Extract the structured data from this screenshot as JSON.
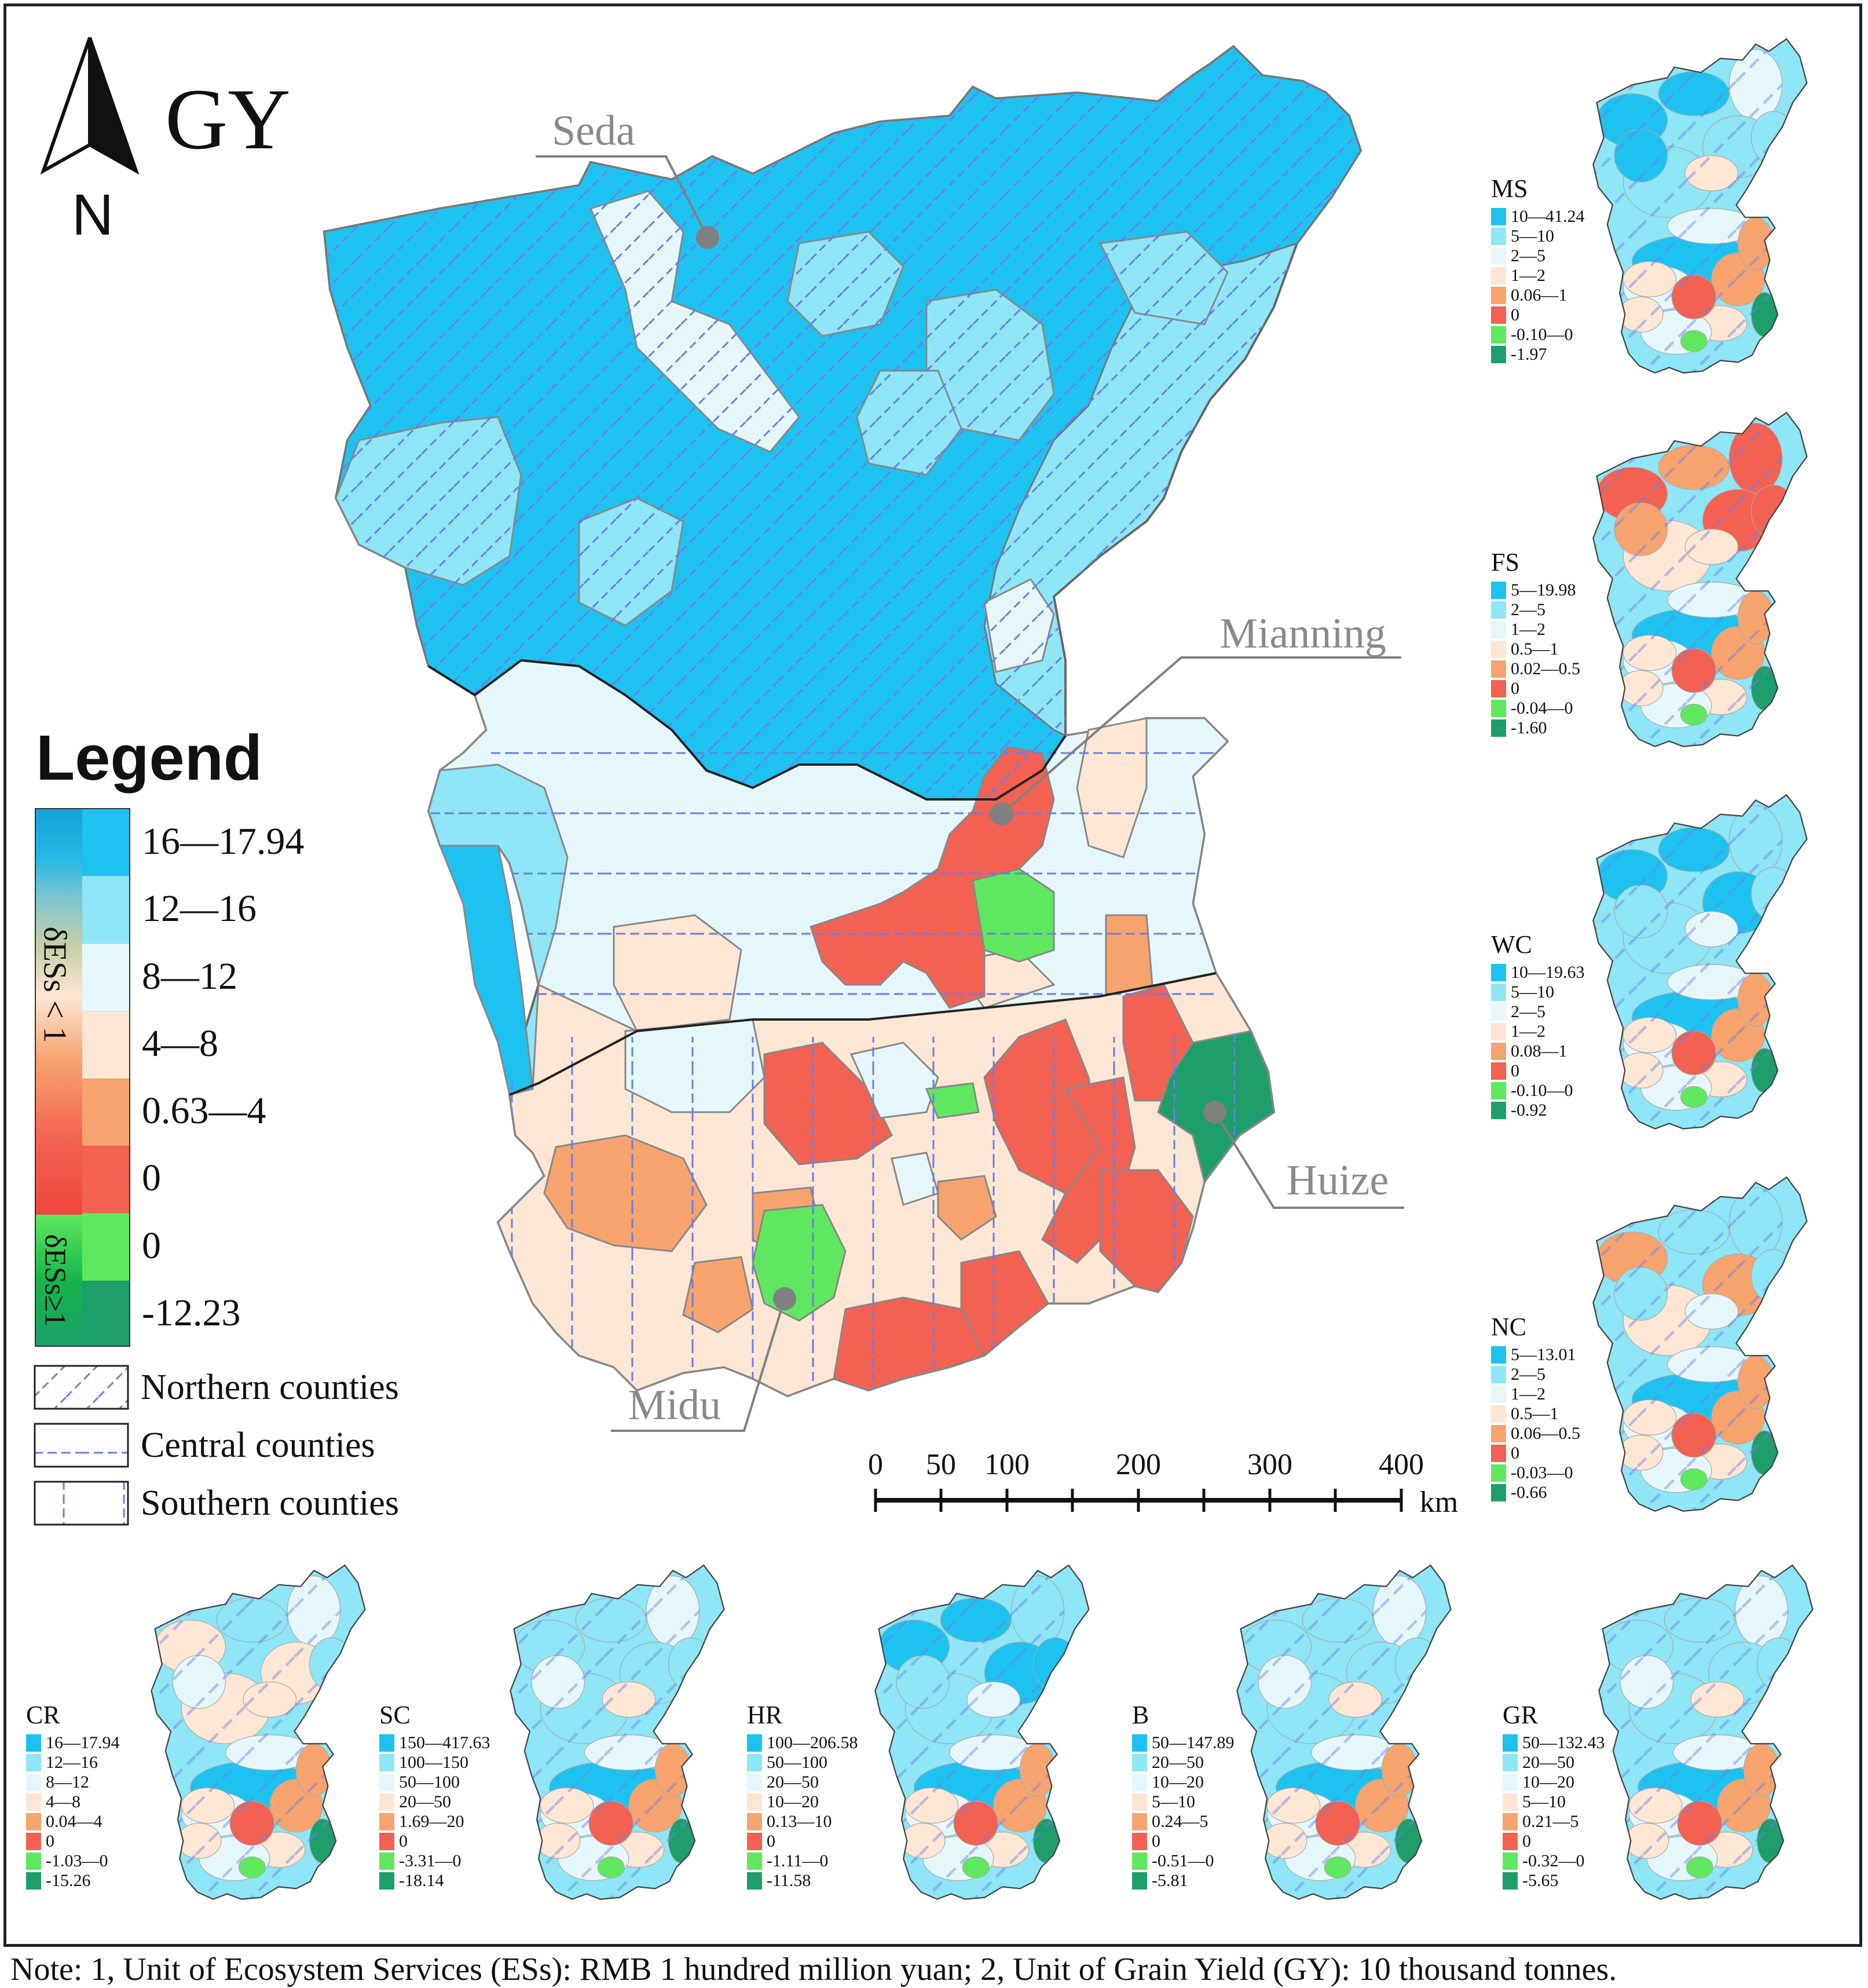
{
  "main_map": {
    "title": "GY",
    "north_label": "N",
    "legend_title": "Legend",
    "legend_side_labels": {
      "lt1": "δESs < 1",
      "ge1": "δESs≥1"
    },
    "classes": [
      {
        "label": "16—17.94",
        "color": "#1ec2f0"
      },
      {
        "label": "12—16",
        "color": "#8ee6f7"
      },
      {
        "label": "8—12",
        "color": "#e6f7fb"
      },
      {
        "label": "4—8",
        "color": "#fde6d4"
      },
      {
        "label": "0.63—4",
        "color": "#f7a36e"
      },
      {
        "label": "0",
        "color": "#f26152"
      },
      {
        "label": "0",
        "color": "#5fe85f"
      },
      {
        "label": "-12.23",
        "color": "#1d9e6a"
      }
    ],
    "region_patterns": [
      {
        "label": "Northern counties",
        "pattern": "diagonal"
      },
      {
        "label": "Central counties",
        "pattern": "horizontal"
      },
      {
        "label": "Southern counties",
        "pattern": "vertical"
      }
    ],
    "callouts": [
      "Seda",
      "Mianning",
      "Huize",
      "Midu"
    ],
    "scale_bar": {
      "ticks": [
        "0",
        "50",
        "100",
        "200",
        "300",
        "400"
      ],
      "unit": "km"
    }
  },
  "small_maps": [
    {
      "title": "MS",
      "labels": [
        "10—41.24",
        "5—10",
        "2—5",
        "1—2",
        "0.06—1",
        "0",
        "-0.10—0",
        "-1.97"
      ]
    },
    {
      "title": "FS",
      "labels": [
        "5—19.98",
        "2—5",
        "1—2",
        "0.5—1",
        "0.02—0.5",
        "0",
        "-0.04—0",
        "-1.60"
      ]
    },
    {
      "title": "WC",
      "labels": [
        "10—19.63",
        "5—10",
        "2—5",
        "1—2",
        "0.08—1",
        "0",
        "-0.10—0",
        "-0.92"
      ]
    },
    {
      "title": "NC",
      "labels": [
        "5—13.01",
        "2—5",
        "1—2",
        "0.5—1",
        "0.06—0.5",
        "0",
        "-0.03—0",
        "-0.66"
      ]
    },
    {
      "title": "CR",
      "labels": [
        "16—17.94",
        "12—16",
        "8—12",
        "4—8",
        "0.04—4",
        "0",
        "-1.03—0",
        "-15.26"
      ]
    },
    {
      "title": "SC",
      "labels": [
        "150—417.63",
        "100—150",
        "50—100",
        "20—50",
        "1.69—20",
        "0",
        "-3.31—0",
        "-18.14"
      ]
    },
    {
      "title": "HR",
      "labels": [
        "100—206.58",
        "50—100",
        "20—50",
        "10—20",
        "0.13—10",
        "0",
        "-1.11—0",
        "-11.58"
      ]
    },
    {
      "title": "B",
      "labels": [
        "50—147.89",
        "20—50",
        "10—20",
        "5—10",
        "0.24—5",
        "0",
        "-0.51—0",
        "-5.81"
      ]
    },
    {
      "title": "GR",
      "labels": [
        "50—132.43",
        "20—50",
        "10—20",
        "5—10",
        "0.21—5",
        "0",
        "-0.32—0",
        "-5.65"
      ]
    }
  ],
  "small_colors": [
    "#1ec2f0",
    "#8ee6f7",
    "#e6f7fb",
    "#fde6d4",
    "#f7a36e",
    "#f26152",
    "#5fe85f",
    "#1d9e6a"
  ],
  "note": "Note: 1, Unit of Ecosystem Services (ESs): RMB 1 hundred million yuan; 2, Unit of Grain Yield (GY): 10 thousand tonnes."
}
